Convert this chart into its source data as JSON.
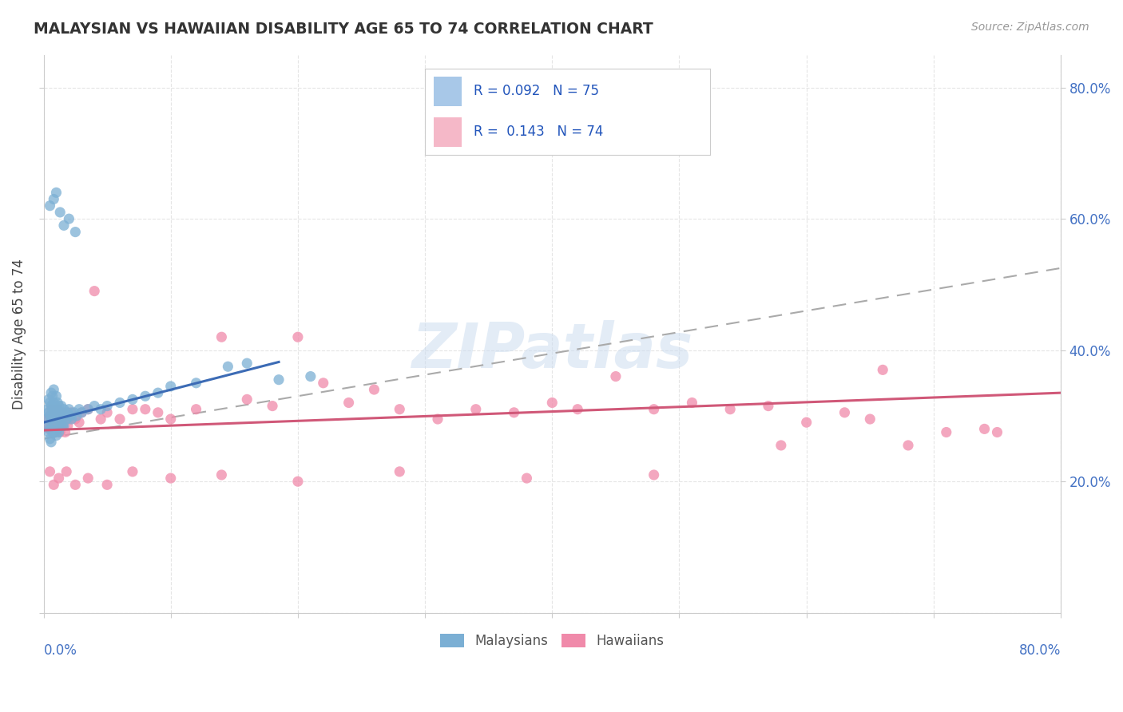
{
  "title": "MALAYSIAN VS HAWAIIAN DISABILITY AGE 65 TO 74 CORRELATION CHART",
  "source_text": "Source: ZipAtlas.com",
  "ylabel": "Disability Age 65 to 74",
  "xaxis_range": [
    0.0,
    0.8
  ],
  "yaxis_range": [
    0.0,
    0.85
  ],
  "malaysians_color": "#7bafd4",
  "hawaiians_color": "#f08aaa",
  "malaysian_trend_color": "#3c6bb5",
  "hawaiian_trend_color": "#d05878",
  "reference_line_color": "#aaaaaa",
  "watermark_color": "#ccddf0",
  "watermark_text": "ZIPatlas",
  "malaysians_label": "Malaysians",
  "hawaiians_label": "Hawaiians",
  "legend_r1": "R = 0.092   N = 75",
  "legend_r2": "R =  0.143   N = 74",
  "legend_color1": "#a8c8e8",
  "legend_color2": "#f5b8c8",
  "mal_x": [
    0.002,
    0.003,
    0.003,
    0.004,
    0.004,
    0.004,
    0.005,
    0.005,
    0.005,
    0.005,
    0.006,
    0.006,
    0.006,
    0.006,
    0.006,
    0.007,
    0.007,
    0.007,
    0.007,
    0.008,
    0.008,
    0.008,
    0.008,
    0.009,
    0.009,
    0.009,
    0.01,
    0.01,
    0.01,
    0.01,
    0.011,
    0.011,
    0.011,
    0.012,
    0.012,
    0.012,
    0.013,
    0.013,
    0.014,
    0.014,
    0.015,
    0.015,
    0.016,
    0.016,
    0.017,
    0.018,
    0.019,
    0.02,
    0.021,
    0.022,
    0.024,
    0.026,
    0.028,
    0.03,
    0.035,
    0.04,
    0.045,
    0.05,
    0.06,
    0.07,
    0.08,
    0.09,
    0.1,
    0.12,
    0.145,
    0.16,
    0.185,
    0.21,
    0.005,
    0.008,
    0.01,
    0.013,
    0.016,
    0.02,
    0.025
  ],
  "mal_y": [
    0.295,
    0.31,
    0.285,
    0.325,
    0.305,
    0.275,
    0.32,
    0.3,
    0.28,
    0.265,
    0.335,
    0.315,
    0.295,
    0.28,
    0.26,
    0.33,
    0.31,
    0.295,
    0.275,
    0.34,
    0.32,
    0.3,
    0.28,
    0.315,
    0.295,
    0.275,
    0.33,
    0.31,
    0.295,
    0.27,
    0.32,
    0.3,
    0.28,
    0.315,
    0.295,
    0.275,
    0.305,
    0.285,
    0.315,
    0.29,
    0.305,
    0.285,
    0.31,
    0.285,
    0.3,
    0.295,
    0.305,
    0.31,
    0.3,
    0.295,
    0.305,
    0.3,
    0.31,
    0.305,
    0.31,
    0.315,
    0.31,
    0.315,
    0.32,
    0.325,
    0.33,
    0.335,
    0.345,
    0.35,
    0.375,
    0.38,
    0.355,
    0.36,
    0.62,
    0.63,
    0.64,
    0.61,
    0.59,
    0.6,
    0.58
  ],
  "haw_x": [
    0.002,
    0.003,
    0.004,
    0.005,
    0.006,
    0.007,
    0.008,
    0.009,
    0.01,
    0.011,
    0.012,
    0.013,
    0.014,
    0.015,
    0.016,
    0.017,
    0.018,
    0.019,
    0.02,
    0.022,
    0.025,
    0.028,
    0.03,
    0.035,
    0.04,
    0.045,
    0.05,
    0.06,
    0.07,
    0.08,
    0.09,
    0.1,
    0.12,
    0.14,
    0.16,
    0.18,
    0.2,
    0.22,
    0.24,
    0.26,
    0.28,
    0.31,
    0.34,
    0.37,
    0.4,
    0.42,
    0.45,
    0.48,
    0.51,
    0.54,
    0.57,
    0.6,
    0.63,
    0.65,
    0.68,
    0.71,
    0.74,
    0.005,
    0.008,
    0.012,
    0.018,
    0.025,
    0.035,
    0.05,
    0.07,
    0.1,
    0.14,
    0.2,
    0.28,
    0.38,
    0.48,
    0.58,
    0.66,
    0.75
  ],
  "haw_y": [
    0.285,
    0.295,
    0.28,
    0.3,
    0.31,
    0.285,
    0.295,
    0.305,
    0.285,
    0.31,
    0.295,
    0.275,
    0.305,
    0.285,
    0.295,
    0.275,
    0.305,
    0.285,
    0.295,
    0.305,
    0.295,
    0.29,
    0.305,
    0.31,
    0.49,
    0.295,
    0.305,
    0.295,
    0.31,
    0.31,
    0.305,
    0.295,
    0.31,
    0.42,
    0.325,
    0.315,
    0.42,
    0.35,
    0.32,
    0.34,
    0.31,
    0.295,
    0.31,
    0.305,
    0.32,
    0.31,
    0.36,
    0.31,
    0.32,
    0.31,
    0.315,
    0.29,
    0.305,
    0.295,
    0.255,
    0.275,
    0.28,
    0.215,
    0.195,
    0.205,
    0.215,
    0.195,
    0.205,
    0.195,
    0.215,
    0.205,
    0.21,
    0.2,
    0.215,
    0.205,
    0.21,
    0.255,
    0.37,
    0.275
  ]
}
